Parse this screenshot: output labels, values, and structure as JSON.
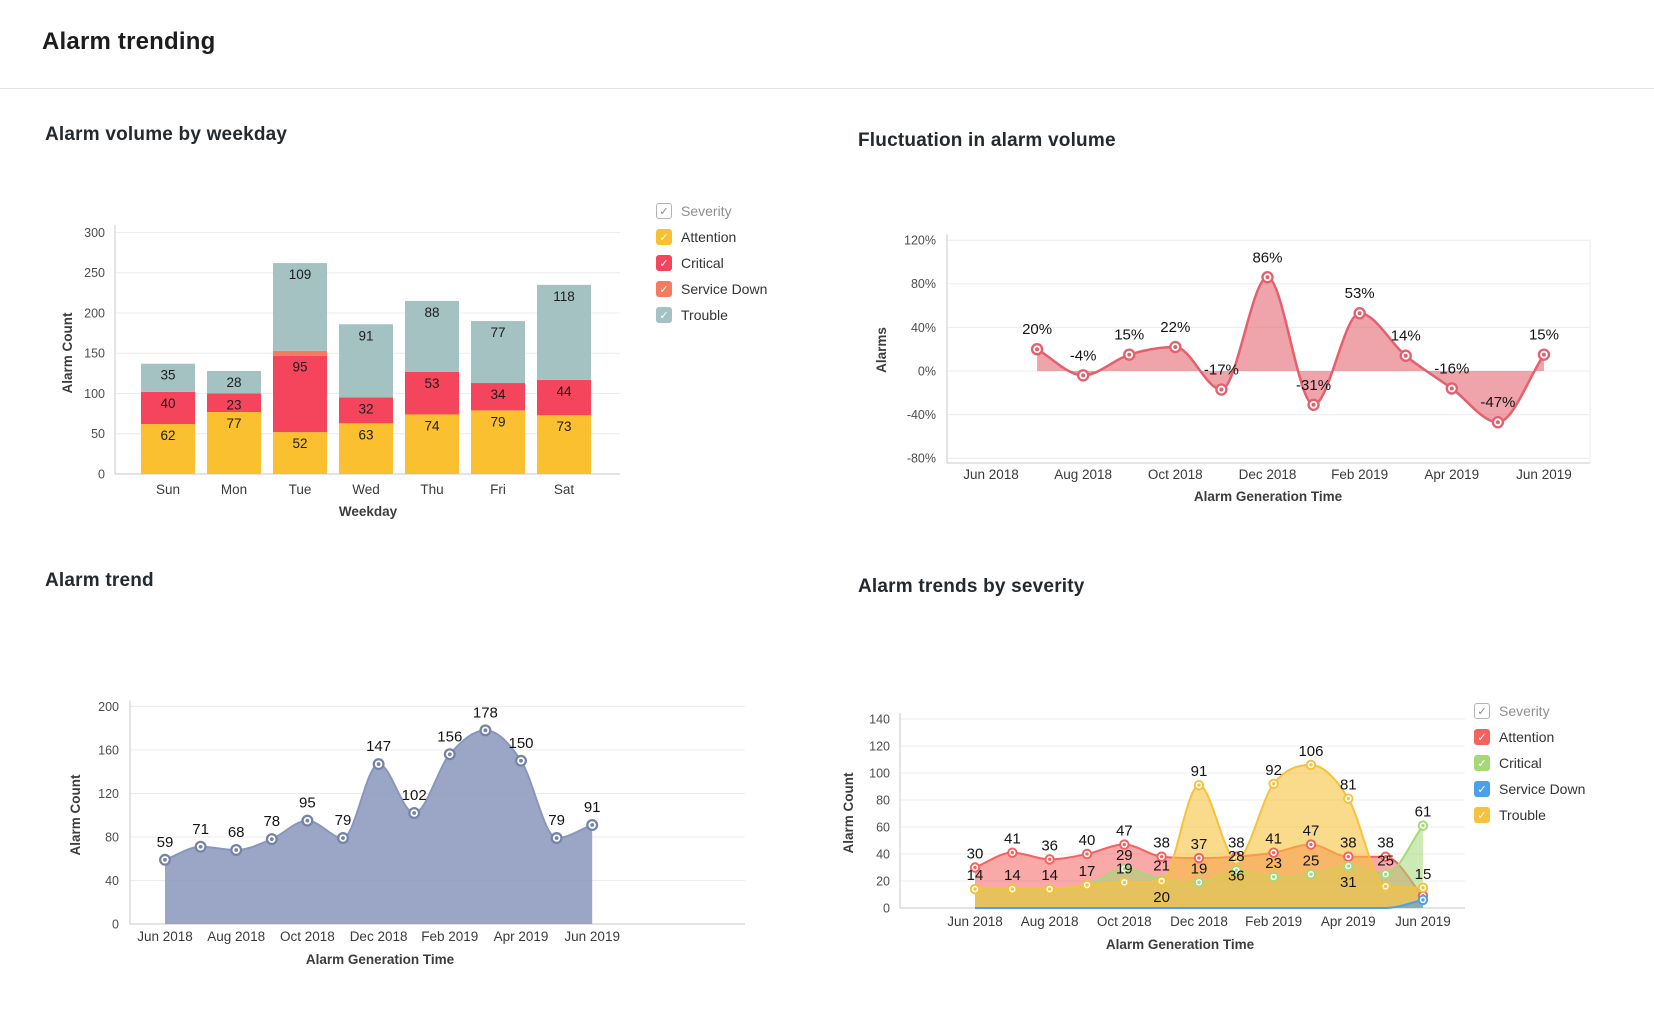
{
  "page": {
    "title": "Alarm trending"
  },
  "legend_check_glyph": "✓",
  "chart_data": [
    {
      "id": "weekday",
      "type": "bar",
      "title": "Alarm volume by weekday",
      "xlabel": "Weekday",
      "ylabel": "Alarm Count",
      "ylim": [
        0,
        300
      ],
      "yticks": [
        0,
        50,
        100,
        150,
        200,
        250,
        300
      ],
      "grid": true,
      "legend_title": "Severity",
      "legend_position": "right",
      "categories": [
        "Sun",
        "Mon",
        "Tue",
        "Wed",
        "Thu",
        "Fri",
        "Sat"
      ],
      "series": [
        {
          "name": "Attention",
          "color": "#FBC02F",
          "values": [
            62,
            77,
            52,
            63,
            74,
            79,
            73
          ]
        },
        {
          "name": "Critical",
          "color": "#F5455C",
          "values": [
            40,
            23,
            95,
            32,
            53,
            34,
            44
          ]
        },
        {
          "name": "Service Down",
          "color": "#F57B5F",
          "values": [
            0,
            0,
            6,
            0,
            0,
            0,
            0
          ]
        },
        {
          "name": "Trouble",
          "color": "#A5C2C3",
          "values": [
            35,
            28,
            109,
            91,
            88,
            77,
            118
          ]
        }
      ]
    },
    {
      "id": "fluct",
      "type": "area",
      "title": "Fluctuation in alarm volume",
      "xlabel": "Alarm Generation Time",
      "ylabel": "Alarms",
      "ylim": [
        -80,
        120
      ],
      "yticks": [
        120,
        80,
        40,
        0,
        -40,
        -80
      ],
      "tick_suffix": "%",
      "label_suffix": "%",
      "grid": true,
      "x_tick_labels": [
        "Jun 2018",
        "Aug 2018",
        "Oct 2018",
        "Dec 2018",
        "Feb 2019",
        "Apr 2019",
        "Jun 2019"
      ],
      "x_months_total": 12,
      "series": [
        {
          "name": "Alarms",
          "color": "#E4606C",
          "fill": "rgba(228,96,108,0.58)",
          "start_month": 1,
          "values": [
            20,
            -4,
            15,
            22,
            -17,
            86,
            -31,
            53,
            14,
            -16,
            -47,
            15
          ]
        }
      ]
    },
    {
      "id": "trend",
      "type": "area",
      "title": "Alarm trend",
      "xlabel": "Alarm Generation Time",
      "ylabel": "Alarm Count",
      "ylim": [
        0,
        200
      ],
      "yticks": [
        0,
        40,
        80,
        120,
        160,
        200
      ],
      "tick_suffix": "",
      "label_suffix": "",
      "grid": true,
      "x_tick_labels": [
        "Jun 2018",
        "Aug 2018",
        "Oct 2018",
        "Dec 2018",
        "Feb 2019",
        "Apr 2019",
        "Jun 2019"
      ],
      "x_months_total": 12,
      "series": [
        {
          "name": "Alarm Count",
          "color": "#8A96BD",
          "fill": "rgba(138,150,189,0.85)",
          "ring": "#7683A8",
          "start_month": 0,
          "values": [
            59,
            71,
            68,
            78,
            95,
            79,
            147,
            102,
            156,
            178,
            150,
            79,
            91
          ]
        }
      ]
    },
    {
      "id": "severity",
      "type": "multi-area",
      "title": "Alarm trends by severity",
      "xlabel": "Alarm Generation Time",
      "ylabel": "Alarm Count",
      "ylim": [
        0,
        140
      ],
      "yticks": [
        0,
        20,
        40,
        60,
        80,
        100,
        120,
        140
      ],
      "grid": true,
      "legend_title": "Severity",
      "legend_position": "right",
      "x_tick_labels": [
        "Jun 2018",
        "Aug 2018",
        "Oct 2018",
        "Dec 2018",
        "Feb 2019",
        "Apr 2019",
        "Jun 2019"
      ],
      "x_months_total": 12,
      "series": [
        {
          "name": "Attention",
          "color": "#F4625F",
          "fill_opacity": 0.55,
          "values": [
            30,
            41,
            36,
            40,
            47,
            38,
            37,
            38,
            41,
            47,
            38,
            38,
            9
          ]
        },
        {
          "name": "Critical",
          "color": "#A5D977",
          "fill_opacity": 0.55,
          "values": [
            14,
            14,
            14,
            17,
            29,
            21,
            19,
            28,
            23,
            25,
            31,
            25,
            61
          ]
        },
        {
          "name": "Service Down",
          "color": "#4BA0EB",
          "fill_opacity": 0.6,
          "values": [
            0,
            0,
            0,
            0,
            0,
            0,
            0,
            0,
            0,
            0,
            0,
            0,
            6
          ]
        },
        {
          "name": "Trouble",
          "color": "#F6C13D",
          "fill_opacity": 0.6,
          "values": [
            14,
            14,
            14,
            17,
            19,
            20,
            91,
            36,
            92,
            106,
            81,
            16,
            15
          ]
        }
      ]
    }
  ]
}
